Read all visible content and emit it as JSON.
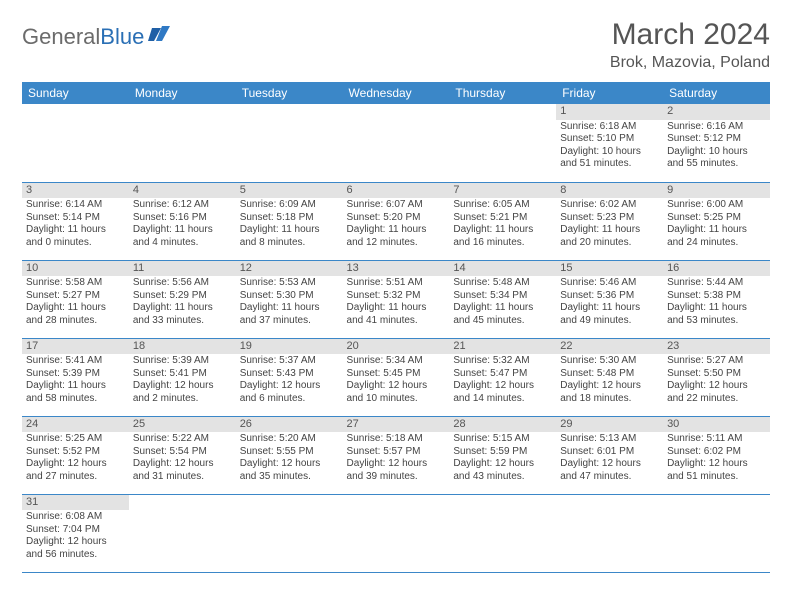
{
  "logo": {
    "part1": "General",
    "part2": "Blue"
  },
  "title": "March 2024",
  "subtitle": "Brok, Mazovia, Poland",
  "header_bg": "#3b87c8",
  "daynum_bg": "#e3e3e3",
  "row_border": "#3b87c8",
  "dayHeaders": [
    "Sunday",
    "Monday",
    "Tuesday",
    "Wednesday",
    "Thursday",
    "Friday",
    "Saturday"
  ],
  "weeks": [
    [
      null,
      null,
      null,
      null,
      null,
      {
        "n": "1",
        "sr": "Sunrise: 6:18 AM",
        "ss": "Sunset: 5:10 PM",
        "d1": "Daylight: 10 hours",
        "d2": "and 51 minutes."
      },
      {
        "n": "2",
        "sr": "Sunrise: 6:16 AM",
        "ss": "Sunset: 5:12 PM",
        "d1": "Daylight: 10 hours",
        "d2": "and 55 minutes."
      }
    ],
    [
      {
        "n": "3",
        "sr": "Sunrise: 6:14 AM",
        "ss": "Sunset: 5:14 PM",
        "d1": "Daylight: 11 hours",
        "d2": "and 0 minutes."
      },
      {
        "n": "4",
        "sr": "Sunrise: 6:12 AM",
        "ss": "Sunset: 5:16 PM",
        "d1": "Daylight: 11 hours",
        "d2": "and 4 minutes."
      },
      {
        "n": "5",
        "sr": "Sunrise: 6:09 AM",
        "ss": "Sunset: 5:18 PM",
        "d1": "Daylight: 11 hours",
        "d2": "and 8 minutes."
      },
      {
        "n": "6",
        "sr": "Sunrise: 6:07 AM",
        "ss": "Sunset: 5:20 PM",
        "d1": "Daylight: 11 hours",
        "d2": "and 12 minutes."
      },
      {
        "n": "7",
        "sr": "Sunrise: 6:05 AM",
        "ss": "Sunset: 5:21 PM",
        "d1": "Daylight: 11 hours",
        "d2": "and 16 minutes."
      },
      {
        "n": "8",
        "sr": "Sunrise: 6:02 AM",
        "ss": "Sunset: 5:23 PM",
        "d1": "Daylight: 11 hours",
        "d2": "and 20 minutes."
      },
      {
        "n": "9",
        "sr": "Sunrise: 6:00 AM",
        "ss": "Sunset: 5:25 PM",
        "d1": "Daylight: 11 hours",
        "d2": "and 24 minutes."
      }
    ],
    [
      {
        "n": "10",
        "sr": "Sunrise: 5:58 AM",
        "ss": "Sunset: 5:27 PM",
        "d1": "Daylight: 11 hours",
        "d2": "and 28 minutes."
      },
      {
        "n": "11",
        "sr": "Sunrise: 5:56 AM",
        "ss": "Sunset: 5:29 PM",
        "d1": "Daylight: 11 hours",
        "d2": "and 33 minutes."
      },
      {
        "n": "12",
        "sr": "Sunrise: 5:53 AM",
        "ss": "Sunset: 5:30 PM",
        "d1": "Daylight: 11 hours",
        "d2": "and 37 minutes."
      },
      {
        "n": "13",
        "sr": "Sunrise: 5:51 AM",
        "ss": "Sunset: 5:32 PM",
        "d1": "Daylight: 11 hours",
        "d2": "and 41 minutes."
      },
      {
        "n": "14",
        "sr": "Sunrise: 5:48 AM",
        "ss": "Sunset: 5:34 PM",
        "d1": "Daylight: 11 hours",
        "d2": "and 45 minutes."
      },
      {
        "n": "15",
        "sr": "Sunrise: 5:46 AM",
        "ss": "Sunset: 5:36 PM",
        "d1": "Daylight: 11 hours",
        "d2": "and 49 minutes."
      },
      {
        "n": "16",
        "sr": "Sunrise: 5:44 AM",
        "ss": "Sunset: 5:38 PM",
        "d1": "Daylight: 11 hours",
        "d2": "and 53 minutes."
      }
    ],
    [
      {
        "n": "17",
        "sr": "Sunrise: 5:41 AM",
        "ss": "Sunset: 5:39 PM",
        "d1": "Daylight: 11 hours",
        "d2": "and 58 minutes."
      },
      {
        "n": "18",
        "sr": "Sunrise: 5:39 AM",
        "ss": "Sunset: 5:41 PM",
        "d1": "Daylight: 12 hours",
        "d2": "and 2 minutes."
      },
      {
        "n": "19",
        "sr": "Sunrise: 5:37 AM",
        "ss": "Sunset: 5:43 PM",
        "d1": "Daylight: 12 hours",
        "d2": "and 6 minutes."
      },
      {
        "n": "20",
        "sr": "Sunrise: 5:34 AM",
        "ss": "Sunset: 5:45 PM",
        "d1": "Daylight: 12 hours",
        "d2": "and 10 minutes."
      },
      {
        "n": "21",
        "sr": "Sunrise: 5:32 AM",
        "ss": "Sunset: 5:47 PM",
        "d1": "Daylight: 12 hours",
        "d2": "and 14 minutes."
      },
      {
        "n": "22",
        "sr": "Sunrise: 5:30 AM",
        "ss": "Sunset: 5:48 PM",
        "d1": "Daylight: 12 hours",
        "d2": "and 18 minutes."
      },
      {
        "n": "23",
        "sr": "Sunrise: 5:27 AM",
        "ss": "Sunset: 5:50 PM",
        "d1": "Daylight: 12 hours",
        "d2": "and 22 minutes."
      }
    ],
    [
      {
        "n": "24",
        "sr": "Sunrise: 5:25 AM",
        "ss": "Sunset: 5:52 PM",
        "d1": "Daylight: 12 hours",
        "d2": "and 27 minutes."
      },
      {
        "n": "25",
        "sr": "Sunrise: 5:22 AM",
        "ss": "Sunset: 5:54 PM",
        "d1": "Daylight: 12 hours",
        "d2": "and 31 minutes."
      },
      {
        "n": "26",
        "sr": "Sunrise: 5:20 AM",
        "ss": "Sunset: 5:55 PM",
        "d1": "Daylight: 12 hours",
        "d2": "and 35 minutes."
      },
      {
        "n": "27",
        "sr": "Sunrise: 5:18 AM",
        "ss": "Sunset: 5:57 PM",
        "d1": "Daylight: 12 hours",
        "d2": "and 39 minutes."
      },
      {
        "n": "28",
        "sr": "Sunrise: 5:15 AM",
        "ss": "Sunset: 5:59 PM",
        "d1": "Daylight: 12 hours",
        "d2": "and 43 minutes."
      },
      {
        "n": "29",
        "sr": "Sunrise: 5:13 AM",
        "ss": "Sunset: 6:01 PM",
        "d1": "Daylight: 12 hours",
        "d2": "and 47 minutes."
      },
      {
        "n": "30",
        "sr": "Sunrise: 5:11 AM",
        "ss": "Sunset: 6:02 PM",
        "d1": "Daylight: 12 hours",
        "d2": "and 51 minutes."
      }
    ],
    [
      {
        "n": "31",
        "sr": "Sunrise: 6:08 AM",
        "ss": "Sunset: 7:04 PM",
        "d1": "Daylight: 12 hours",
        "d2": "and 56 minutes."
      },
      null,
      null,
      null,
      null,
      null,
      null
    ]
  ]
}
